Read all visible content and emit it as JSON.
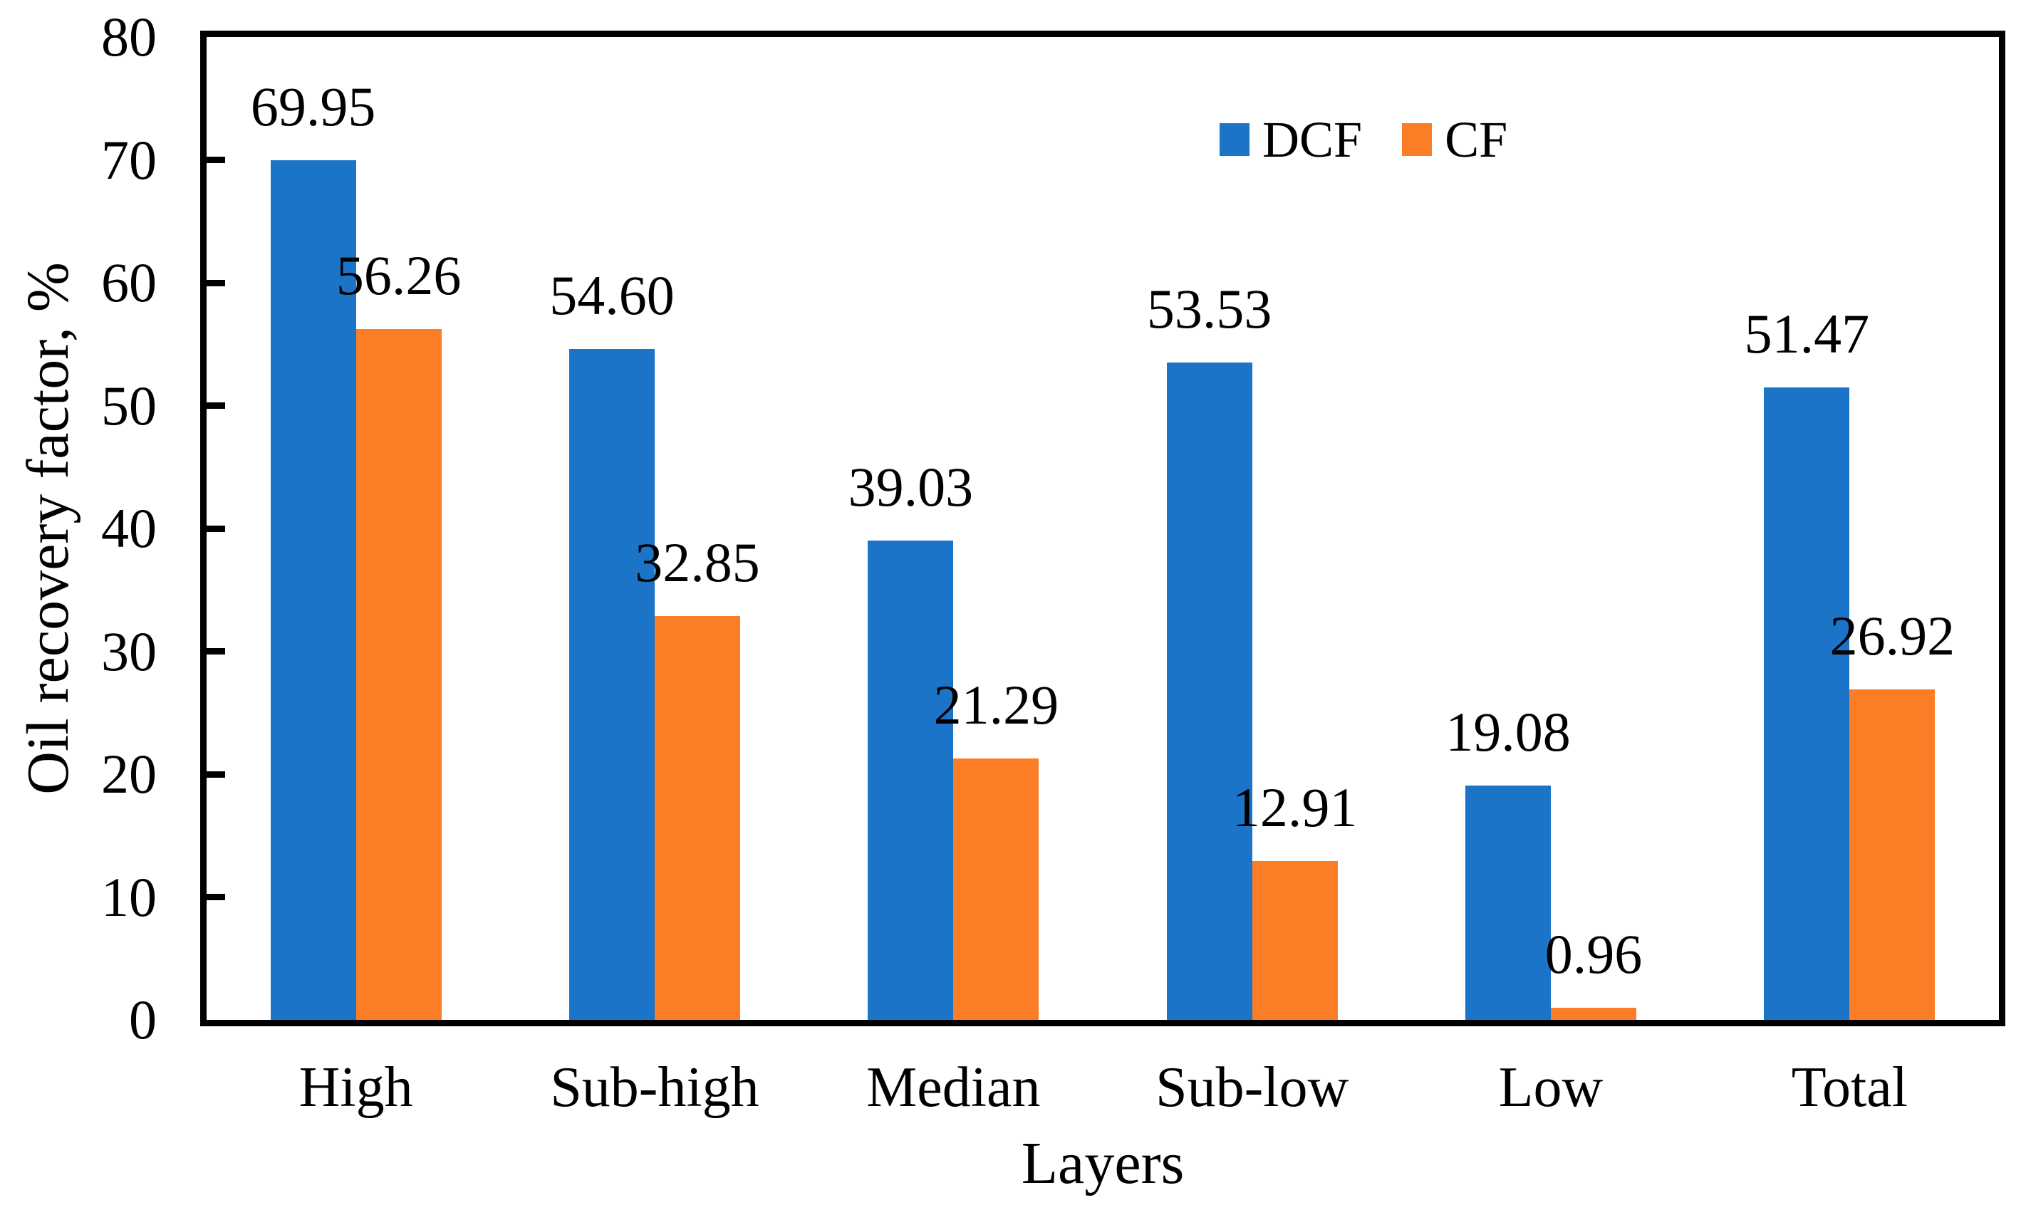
{
  "chart_data": {
    "type": "bar",
    "title": "",
    "categories": [
      "High",
      "Sub-high",
      "Median",
      "Sub-low",
      "Low",
      "Total"
    ],
    "series": [
      {
        "name": "DCF",
        "color": "#1B74C8",
        "values": [
          69.95,
          54.6,
          39.03,
          53.53,
          19.08,
          51.47
        ]
      },
      {
        "name": "CF",
        "color": "#FB7D26",
        "values": [
          56.26,
          32.85,
          21.29,
          12.91,
          0.96,
          26.92
        ]
      }
    ],
    "value_label_decimals": 2,
    "xlabel": "Layers",
    "ylabel": "Oil recovery factor, %",
    "ylim": [
      0,
      80
    ],
    "yticks": [
      0,
      10,
      20,
      30,
      40,
      50,
      60,
      70,
      80
    ],
    "grid": false,
    "legend_position": "inside-top-center-right",
    "frame": "full-box",
    "tick_direction": "in",
    "colors": {
      "axis": "#000000",
      "background": "#ffffff",
      "text": "#000000"
    }
  }
}
